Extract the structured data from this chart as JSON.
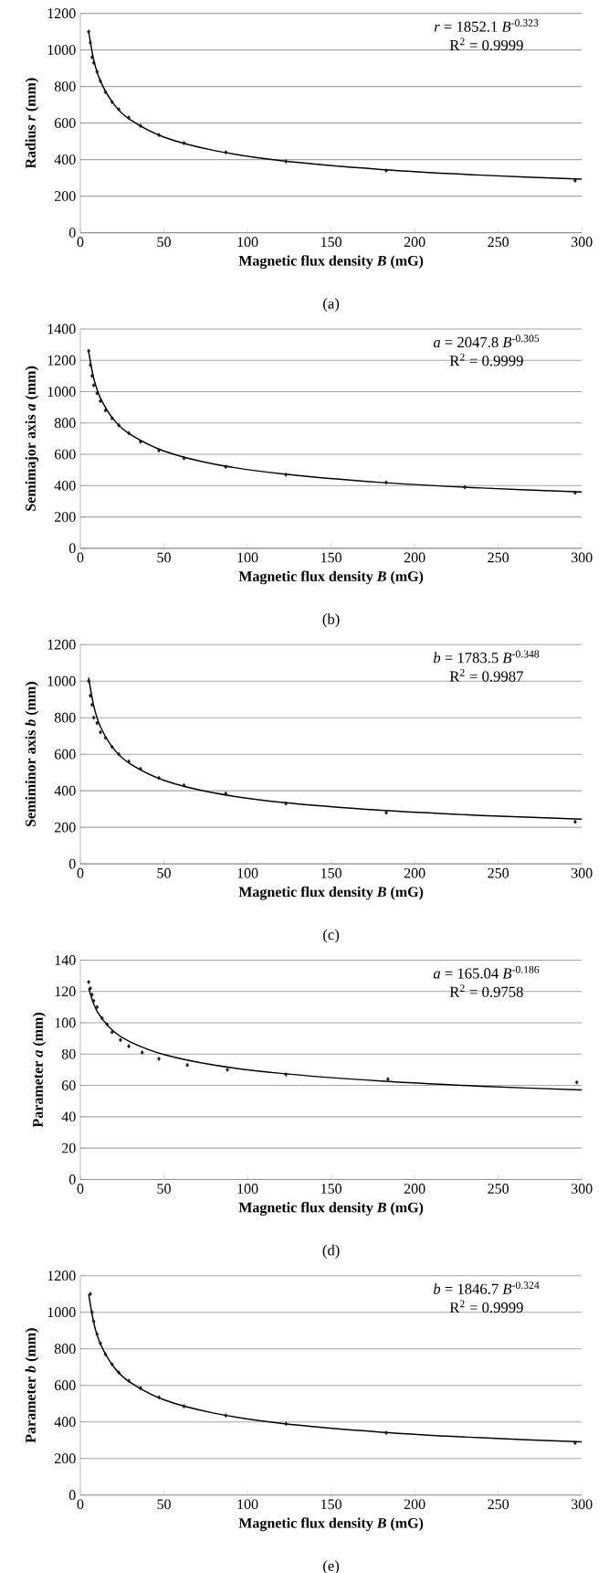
{
  "chart_data": [
    {
      "type": "scatter",
      "xlabel": "Magnetic flux density *B* (mG)",
      "ylabel": "Radius *r* (mm)",
      "xlim": [
        0,
        300
      ],
      "ylim": [
        0,
        1200
      ],
      "xticks": [
        0,
        50,
        100,
        150,
        200,
        250,
        300
      ],
      "yticks": [
        0,
        200,
        400,
        600,
        800,
        1000,
        1200
      ],
      "grid": "y",
      "marker": "diamond",
      "annotations": [
        "*r* = 1852.1 *B*$^{-0.323}$",
        "R$^{2}$ = 0.9999",
        "(a)"
      ],
      "series": [
        {
          "type": "scatter",
          "color": "#1a1a1a",
          "x": [
            5,
            6,
            7,
            8,
            10,
            12,
            15,
            19,
            23,
            29,
            36,
            47,
            62,
            87,
            123,
            183,
            296
          ],
          "values": [
            1100,
            1040,
            960,
            930,
            880,
            830,
            770,
            715,
            675,
            630,
            585,
            535,
            490,
            440,
            390,
            340,
            285
          ]
        },
        {
          "type": "line",
          "marker": "none",
          "color": "#000000",
          "x": [
            5,
            8,
            12,
            20,
            30,
            50,
            80,
            120,
            180,
            240,
            300
          ],
          "values": [
            1102,
            946,
            830,
            704,
            617,
            523,
            450,
            394,
            346,
            315,
            293
          ]
        }
      ]
    },
    {
      "type": "scatter",
      "xlabel": "Magnetic flux density *B* (mG)",
      "ylabel": "Semimajor axis *a* (mm)",
      "xlim": [
        0,
        300
      ],
      "ylim": [
        0,
        1400
      ],
      "xticks": [
        0,
        50,
        100,
        150,
        200,
        250,
        300
      ],
      "yticks": [
        0,
        200,
        400,
        600,
        800,
        1000,
        1200,
        1400
      ],
      "grid": "y",
      "marker": "diamond",
      "annotations": [
        "*a* = 2047.8 *B*$^{-0.305}$",
        "R$^{2}$ = 0.9999",
        "(b)"
      ],
      "series": [
        {
          "type": "scatter",
          "color": "#1a1a1a",
          "x": [
            5,
            6,
            7,
            8,
            10,
            12,
            15,
            19,
            23,
            29,
            36,
            47,
            62,
            87,
            123,
            183,
            230,
            296
          ],
          "values": [
            1260,
            1170,
            1100,
            1040,
            990,
            940,
            880,
            830,
            785,
            735,
            680,
            625,
            575,
            520,
            470,
            420,
            390,
            355
          ]
        },
        {
          "type": "line",
          "marker": "none",
          "color": "#000000",
          "x": [
            5,
            8,
            12,
            20,
            30,
            50,
            80,
            120,
            180,
            240,
            300
          ],
          "values": [
            1254,
            1086,
            960,
            821,
            726,
            621,
            538,
            476,
            420,
            385,
            359
          ]
        }
      ]
    },
    {
      "type": "scatter",
      "xlabel": "Magnetic flux density *B* (mG)",
      "ylabel": "Semiminor axis *b* (mm)",
      "xlim": [
        0,
        300
      ],
      "ylim": [
        0,
        1200
      ],
      "xticks": [
        0,
        50,
        100,
        150,
        200,
        250,
        300
      ],
      "yticks": [
        0,
        200,
        400,
        600,
        800,
        1000,
        1200
      ],
      "grid": "y",
      "marker": "diamond",
      "annotations": [
        "*b* = 1783.5 *B*$^{-0.348}$",
        "R$^{2}$ = 0.9987",
        "(c)"
      ],
      "series": [
        {
          "type": "scatter",
          "color": "#1a1a1a",
          "x": [
            5,
            6,
            7,
            8,
            10,
            12,
            15,
            19,
            23,
            29,
            36,
            47,
            62,
            87,
            123,
            183,
            296
          ],
          "values": [
            1000,
            920,
            870,
            800,
            770,
            720,
            690,
            640,
            600,
            560,
            520,
            470,
            430,
            385,
            330,
            280,
            230
          ]
        },
        {
          "type": "line",
          "marker": "none",
          "color": "#000000",
          "x": [
            5,
            8,
            12,
            20,
            30,
            50,
            80,
            120,
            180,
            240,
            300
          ],
          "values": [
            1019,
            865,
            751,
            629,
            546,
            457,
            388,
            337,
            293,
            265,
            245
          ]
        }
      ]
    },
    {
      "type": "scatter",
      "xlabel": "Magnetic flux density *B* (mG)",
      "ylabel": "Parameter *a* (mm)",
      "xlim": [
        0,
        300
      ],
      "ylim": [
        0,
        140
      ],
      "xticks": [
        0,
        50,
        100,
        150,
        200,
        250,
        300
      ],
      "yticks": [
        0,
        20,
        40,
        60,
        80,
        100,
        120,
        140
      ],
      "grid": "y",
      "marker": "diamond",
      "annotations": [
        "*a* = 165.04 *B*$^{-0.186}$",
        "R$^{2}$ = 0.9758",
        "(d)"
      ],
      "series": [
        {
          "type": "scatter",
          "color": "#1a1a1a",
          "x": [
            5,
            6,
            7,
            8,
            10,
            13,
            16,
            19,
            24,
            29,
            37,
            47,
            64,
            88,
            123,
            184,
            297
          ],
          "values": [
            126,
            122,
            118,
            114,
            110,
            103,
            99,
            94,
            89,
            85,
            81,
            77,
            73,
            70,
            67,
            64,
            62
          ]
        },
        {
          "type": "line",
          "marker": "none",
          "color": "#000000",
          "x": [
            5,
            8,
            12,
            20,
            30,
            50,
            80,
            120,
            180,
            240,
            300
          ],
          "values": [
            122,
            112,
            104,
            94.5,
            87.7,
            79.7,
            73.0,
            67.7,
            62.8,
            59.5,
            57.1
          ]
        }
      ]
    },
    {
      "type": "scatter",
      "xlabel": "Magnetic flux density *B* (mG)",
      "ylabel": "Parameter *b* (mm)",
      "xlim": [
        0,
        300
      ],
      "ylim": [
        0,
        1200
      ],
      "xticks": [
        0,
        50,
        100,
        150,
        200,
        250,
        300
      ],
      "yticks": [
        0,
        200,
        400,
        600,
        800,
        1000,
        1200
      ],
      "grid": "y",
      "marker": "diamond",
      "annotations": [
        "*b* = 1846.7 *B*$^{-0.324}$",
        "R$^{2}$ = 0.9999",
        "(e)"
      ],
      "series": [
        {
          "type": "scatter",
          "color": "#1a1a1a",
          "x": [
            6,
            7,
            8,
            10,
            12,
            15,
            19,
            23,
            29,
            36,
            47,
            62,
            87,
            123,
            183,
            296
          ],
          "values": [
            1100,
            1000,
            950,
            880,
            830,
            770,
            715,
            670,
            625,
            585,
            535,
            485,
            435,
            390,
            340,
            285
          ]
        },
        {
          "type": "line",
          "marker": "none",
          "color": "#000000",
          "x": [
            5,
            8,
            12,
            20,
            30,
            50,
            80,
            120,
            180,
            240,
            300
          ],
          "values": [
            1099,
            943,
            827,
            701,
            615,
            521,
            448,
            392,
            344,
            313,
            291
          ]
        }
      ]
    }
  ]
}
